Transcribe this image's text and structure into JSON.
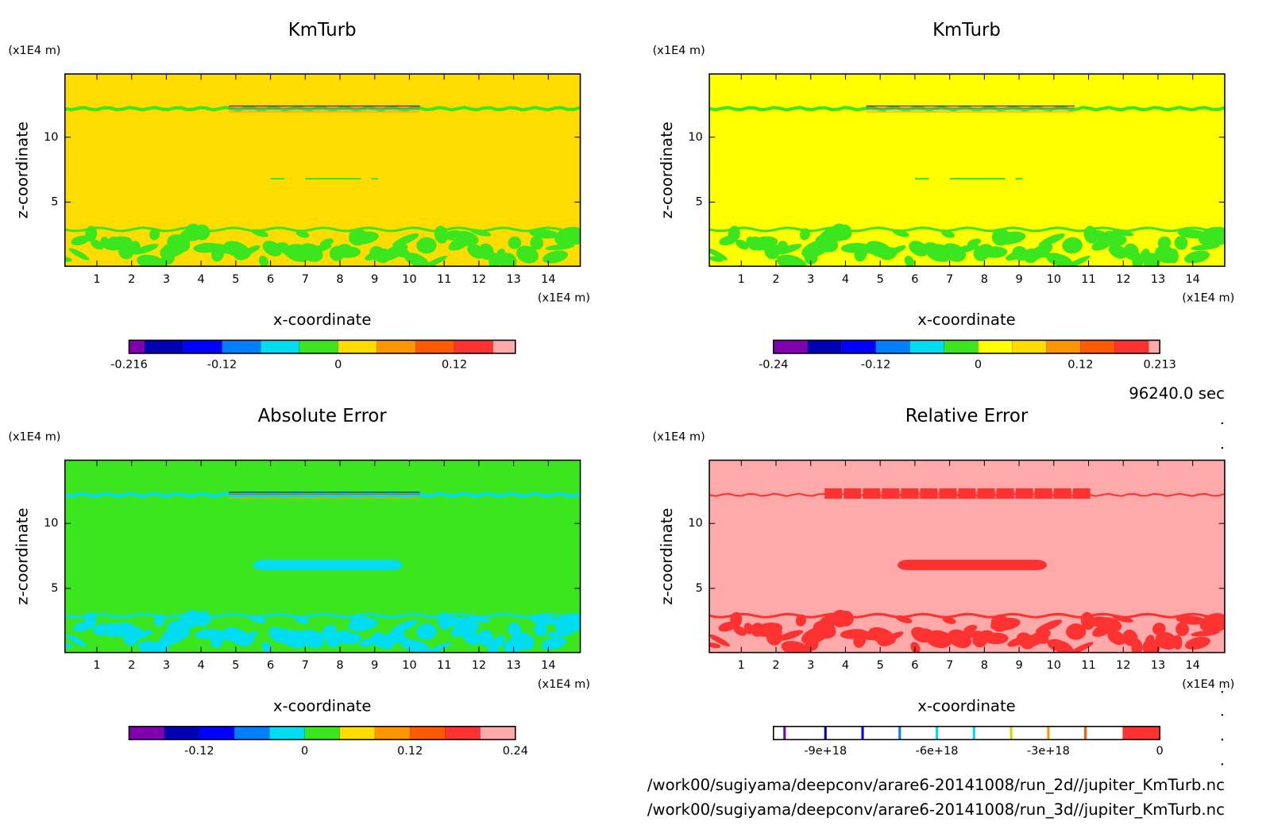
{
  "chart_data": [
    {
      "type": "contour",
      "title": "KmTurb",
      "xlabel": "x-coordinate",
      "ylabel": "z-coordinate",
      "xunit": "(x1E4 m)",
      "yunit": "(x1E4 m)",
      "xlim": [
        0.08,
        14.92
      ],
      "ylim": [
        0.06,
        14.87
      ],
      "xticks": [
        1,
        2,
        3,
        4,
        5,
        6,
        7,
        8,
        9,
        10,
        11,
        12,
        13,
        14
      ],
      "yticks": [
        5,
        10
      ],
      "colorbar": {
        "bounds": [
          -0.216,
          -0.2,
          -0.16,
          -0.12,
          -0.08,
          -0.04,
          0,
          0.04,
          0.08,
          0.12,
          0.16,
          0.183
        ],
        "colors": [
          "#8000b0",
          "#0000b4",
          "#0000ff",
          "#0080ff",
          "#00dcf0",
          "#3ce61e",
          "#ffdc00",
          "#ff9600",
          "#ff5a00",
          "#ff3232",
          "#ffaaaa"
        ],
        "ticks": [
          -0.216,
          -0.12,
          0,
          0.12
        ]
      }
    },
    {
      "type": "contour",
      "title": "KmTurb",
      "xlabel": "x-coordinate",
      "ylabel": "z-coordinate",
      "xunit": "(x1E4 m)",
      "yunit": "(x1E4 m)",
      "xlim": [
        0.08,
        14.92
      ],
      "ylim": [
        0.06,
        14.87
      ],
      "xticks": [
        1,
        2,
        3,
        4,
        5,
        6,
        7,
        8,
        9,
        10,
        11,
        12,
        13,
        14
      ],
      "yticks": [
        5,
        10
      ],
      "colorbar": {
        "bounds": [
          -0.24,
          -0.2,
          -0.16,
          -0.12,
          -0.08,
          -0.04,
          0,
          0.04,
          0.08,
          0.12,
          0.16,
          0.2,
          0.213
        ],
        "colors": [
          "#8000b0",
          "#0000b4",
          "#0000ff",
          "#0080ff",
          "#00dcf0",
          "#3ce61e",
          "#ffff00",
          "#ffdc00",
          "#ff9600",
          "#ff5a00",
          "#ff3232",
          "#ffaaaa"
        ],
        "ticks": [
          -0.24,
          -0.12,
          0,
          0.12,
          0.213
        ]
      }
    },
    {
      "type": "contour",
      "title": "Absolute Error",
      "xlabel": "x-coordinate",
      "ylabel": "z-coordinate",
      "xunit": "(x1E4 m)",
      "yunit": "(x1E4 m)",
      "xlim": [
        0.08,
        14.92
      ],
      "ylim": [
        0.06,
        14.87
      ],
      "xticks": [
        1,
        2,
        3,
        4,
        5,
        6,
        7,
        8,
        9,
        10,
        11,
        12,
        13,
        14
      ],
      "yticks": [
        5,
        10
      ],
      "colorbar": {
        "bounds": [
          -0.2,
          -0.16,
          -0.12,
          -0.08,
          -0.04,
          0,
          0.04,
          0.08,
          0.12,
          0.16,
          0.2,
          0.24
        ],
        "colors": [
          "#8000b0",
          "#0000b4",
          "#0000ff",
          "#0080ff",
          "#00dcf0",
          "#3ce61e",
          "#ffdc00",
          "#ff9600",
          "#ff5a00",
          "#ff3232",
          "#ffaaaa"
        ],
        "ticks": [
          -0.12,
          0,
          0.12,
          0.24
        ]
      }
    },
    {
      "type": "contour",
      "title": "Relative Error",
      "xlabel": "x-coordinate",
      "ylabel": "z-coordinate",
      "xunit": "(x1E4 m)",
      "yunit": "(x1E4 m)",
      "xlim": [
        0.08,
        14.92
      ],
      "ylim": [
        0.06,
        14.87
      ],
      "xticks": [
        1,
        2,
        3,
        4,
        5,
        6,
        7,
        8,
        9,
        10,
        11,
        12,
        13,
        14
      ],
      "yticks": [
        5,
        10
      ],
      "colorbar": {
        "bounds": [
          -1.04e+19,
          -1e+18,
          0
        ],
        "colors": [
          "#ffffff",
          "#ff3232"
        ],
        "level_lines": [
          -1.01e+19,
          -9e+18,
          -8e+18,
          -7e+18,
          -6e+18,
          -5e+18,
          -4e+18,
          -3e+18,
          -2e+18
        ],
        "level_colors": [
          "#8000b0",
          "#0000b4",
          "#0000ff",
          "#0080ff",
          "#00dcf0",
          "#00dcf0",
          "#dcd000",
          "#ff9600",
          "#ff5a00"
        ],
        "ticks": [
          {
            "value": -9e+18,
            "label": "-9e+18"
          },
          {
            "value": -6e+18,
            "label": "-6e+18"
          },
          {
            "value": -3e+18,
            "label": "-3e+18"
          },
          0
        ]
      }
    }
  ],
  "annotations": {
    "time": "96240.0 sec",
    "files": [
      "/work00/sugiyama/deepconv/arare6-20141008/run_2d//jupiter_KmTurb.nc",
      "/work00/sugiyama/deepconv/arare6-20141008/run_3d//jupiter_KmTurb.nc"
    ]
  }
}
